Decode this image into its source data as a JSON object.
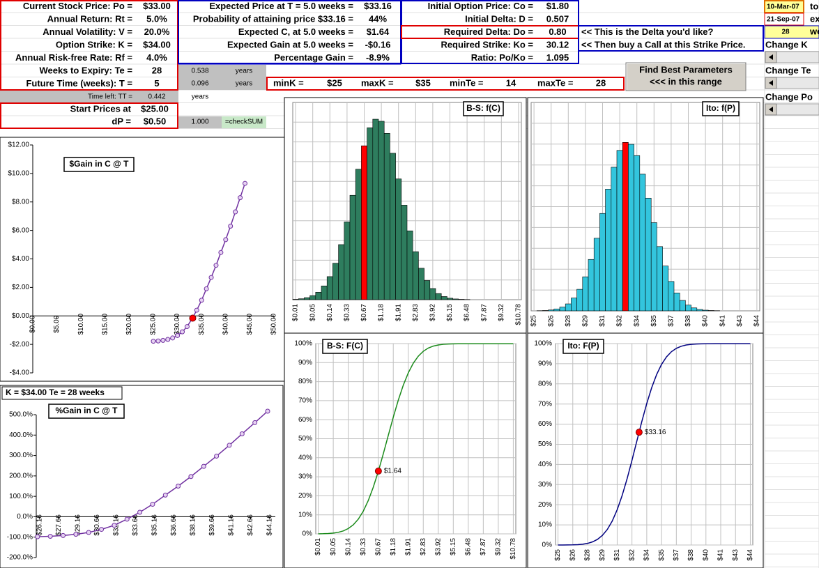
{
  "inputs": [
    {
      "label": "Current Stock Price: Po =",
      "value": "$33.00"
    },
    {
      "label": "Annual Return: Rt =",
      "value": "5.0%"
    },
    {
      "label": "Annual Volatility: V =",
      "value": "20.0%"
    },
    {
      "label": "Option Strike: K =",
      "value": "$34.00"
    },
    {
      "label": "Annual Risk-free Rate: Rf =",
      "value": "4.0%"
    },
    {
      "label": "Weeks to Expiry: Te =",
      "value": "28"
    },
    {
      "label": "Future Time (weeks): T =",
      "value": "5"
    }
  ],
  "years": {
    "te": "0.538",
    "t": "0.096",
    "unit": "years"
  },
  "time_left": {
    "label": "Time left: TT =",
    "value": "0.442"
  },
  "start": {
    "label": "Start Prices at",
    "value": "$25.00"
  },
  "dp": {
    "label": "dP =",
    "value": "$0.50"
  },
  "checksum": {
    "value": "1.000",
    "note": "=checkSUM"
  },
  "expected": [
    {
      "label": "Expected Price at T = 5.0 weeks =",
      "value": "$33.16"
    },
    {
      "label": "Probability of attaining price $33.16 =",
      "value": "44%"
    },
    {
      "label": "Expected C, at 5.0 weeks =",
      "value": "$1.64"
    },
    {
      "label": "Expected Gain at 5.0 weeks =",
      "value": "-$0.16"
    },
    {
      "label": "Percentage Gain =",
      "value": "-8.9%"
    }
  ],
  "option": [
    {
      "label": "Initial Option Price: Co =",
      "value": "$1.80"
    },
    {
      "label": "Initial Delta: D =",
      "value": "0.507"
    },
    {
      "label": "Required Delta: Do =",
      "value": "0.80"
    },
    {
      "label": "Required Strike: Ko =",
      "value": "30.12"
    },
    {
      "label": "Ratio: Po/Ko =",
      "value": "1.095"
    }
  ],
  "notes": [
    "<< This is the Delta you'd like?",
    "<< Then buy a Call at this Strike Price."
  ],
  "range": [
    {
      "label": "minK =",
      "value": "$25"
    },
    {
      "label": "maxK =",
      "value": "$35"
    },
    {
      "label": "minTe =",
      "value": "14"
    },
    {
      "label": "maxTe =",
      "value": "28"
    }
  ],
  "button": [
    "Find Best Parameters",
    "<<< in this range"
  ],
  "side": {
    "start_date": "10-Mar-07",
    "to": "to",
    "end_date": "21-Sep-07",
    "ex": "ex",
    "weeks": "28",
    "we": "we",
    "controls": [
      "Change K",
      "Change Te",
      "Change Po"
    ]
  },
  "chart_caption": "K = $34.00  Te = 28 weeks",
  "chart_data": [
    {
      "type": "line",
      "title": "$Gain in C @ T",
      "color": "#7030a0",
      "x": [
        25,
        26,
        27,
        28,
        29,
        30,
        31,
        32,
        33,
        34,
        35,
        36,
        37,
        38,
        39,
        40,
        41,
        42,
        43,
        44
      ],
      "values": [
        -1.78,
        -1.76,
        -1.72,
        -1.65,
        -1.55,
        -1.38,
        -1.12,
        -0.75,
        -0.22,
        0.4,
        1.1,
        1.9,
        2.7,
        3.55,
        4.45,
        5.35,
        6.3,
        7.3,
        8.3,
        9.3
      ],
      "xlim": [
        0,
        50
      ],
      "ylim": [
        -4,
        12
      ],
      "xticks": [
        {
          "value": 0,
          "label": "$0.00"
        },
        {
          "value": 5,
          "label": "$5.00"
        },
        {
          "value": 10,
          "label": "$10.00"
        },
        {
          "value": 15,
          "label": "$15.00"
        },
        {
          "value": 20,
          "label": "$20.00"
        },
        {
          "value": 25,
          "label": "$25.00"
        },
        {
          "value": 30,
          "label": "$30.00"
        },
        {
          "value": 35,
          "label": "$35.00"
        },
        {
          "value": 40,
          "label": "$40.00"
        },
        {
          "value": 45,
          "label": "$45.00"
        },
        {
          "value": 50,
          "label": "$50.00"
        }
      ],
      "yticks": [
        {
          "value": -4,
          "label": "-$4.00"
        },
        {
          "value": -2,
          "label": "-$2.00"
        },
        {
          "value": 0,
          "label": "$0.00"
        },
        {
          "value": 2,
          "label": "$2.00"
        },
        {
          "value": 4,
          "label": "$4.00"
        },
        {
          "value": 6,
          "label": "$6.00"
        },
        {
          "value": 8,
          "label": "$8.00"
        },
        {
          "value": 10,
          "label": "$10.00"
        },
        {
          "value": 12,
          "label": "$12.00"
        }
      ],
      "marker": {
        "x": 33.16,
        "y": -0.16,
        "color": "#ff0000"
      }
    },
    {
      "type": "line",
      "title": "%Gain in C @ T",
      "color": "#7030a0",
      "x": [
        26,
        27,
        28,
        29,
        30,
        31,
        32,
        33,
        34,
        35,
        36,
        37,
        38,
        39,
        40,
        41,
        42,
        43,
        44
      ],
      "values": [
        -98,
        -96,
        -92,
        -86,
        -77,
        -62,
        -42,
        -12,
        22,
        61,
        106,
        150,
        197,
        247,
        297,
        350,
        406,
        461,
        517
      ],
      "xlim": [
        25.9,
        44.6
      ],
      "ylim": [
        -200,
        500
      ],
      "xticks": [
        {
          "value": 26.16,
          "label": "$26.16"
        },
        {
          "value": 27.66,
          "label": "$27.66"
        },
        {
          "value": 29.16,
          "label": "$29.16"
        },
        {
          "value": 30.66,
          "label": "$30.66"
        },
        {
          "value": 32.16,
          "label": "$32.16"
        },
        {
          "value": 33.66,
          "label": "$33.66"
        },
        {
          "value": 35.16,
          "label": "$35.16"
        },
        {
          "value": 36.66,
          "label": "$36.66"
        },
        {
          "value": 38.16,
          "label": "$38.16"
        },
        {
          "value": 39.66,
          "label": "$39.66"
        },
        {
          "value": 41.16,
          "label": "$41.16"
        },
        {
          "value": 42.66,
          "label": "$42.66"
        },
        {
          "value": 44.16,
          "label": "$44.16"
        }
      ],
      "yticks": [
        {
          "value": -200,
          "label": "-200.0%"
        },
        {
          "value": -100,
          "label": "-100.0%"
        },
        {
          "value": 0,
          "label": "0.0%"
        },
        {
          "value": 100,
          "label": "100.0%"
        },
        {
          "value": 200,
          "label": "200.0%"
        },
        {
          "value": 300,
          "label": "300.0%"
        },
        {
          "value": 400,
          "label": "400.0%"
        },
        {
          "value": 500,
          "label": "500.0%"
        }
      ]
    },
    {
      "type": "bar",
      "title": "B-S: f(C)",
      "color": "#2e7d5e",
      "ylim": [
        0,
        10.6
      ],
      "categories": [
        "$0.01",
        null,
        null,
        "$0.05",
        null,
        null,
        "$0.14",
        null,
        null,
        "$0.33",
        null,
        null,
        "$0.67",
        null,
        null,
        "$1.18",
        null,
        null,
        "$1.91",
        null,
        null,
        "$2.83",
        null,
        null,
        "$3.92",
        null,
        null,
        "$5.15",
        null,
        null,
        "$6.48",
        null,
        null,
        "$7.87",
        null,
        null,
        "$9.32",
        null,
        null,
        "$10.78"
      ],
      "values": [
        0.02,
        0.05,
        0.11,
        0.22,
        0.4,
        0.74,
        1.24,
        1.96,
        2.96,
        4.18,
        5.61,
        7.01,
        8.27,
        9.24,
        9.7,
        9.59,
        8.94,
        7.87,
        6.49,
        5.08,
        3.7,
        2.58,
        1.69,
        1.03,
        0.6,
        0.33,
        0.17,
        0.08,
        0.04,
        0.02,
        0.01,
        0,
        0,
        0,
        0,
        0,
        0,
        0,
        0,
        0
      ],
      "highlight": {
        "index": 12,
        "color": "#ff0000"
      }
    },
    {
      "type": "bar",
      "title": "Ito: f(P)",
      "color": "#33c5dd",
      "ylim": [
        0,
        12
      ],
      "categories": [
        "$25",
        null,
        null,
        "$26",
        null,
        null,
        "$28",
        null,
        null,
        "$29",
        null,
        null,
        "$31",
        null,
        null,
        "$32",
        null,
        null,
        "$34",
        null,
        null,
        "$35",
        null,
        null,
        "$37",
        null,
        null,
        "$38",
        null,
        null,
        "$40",
        null,
        null,
        "$41",
        null,
        null,
        "$43",
        null,
        null,
        "$44"
      ],
      "values": [
        0,
        0.01,
        0.02,
        0.05,
        0.11,
        0.22,
        0.4,
        0.74,
        1.24,
        1.96,
        2.96,
        4.18,
        5.61,
        7.01,
        8.27,
        9.24,
        9.7,
        9.59,
        8.94,
        7.87,
        6.49,
        5.08,
        3.7,
        2.58,
        1.69,
        1.03,
        0.6,
        0.33,
        0.17,
        0.08,
        0.04,
        0.02,
        0.01,
        0,
        0,
        0,
        0,
        0,
        0,
        0
      ],
      "highlight": {
        "index": 16,
        "color": "#ff0000"
      }
    },
    {
      "type": "line",
      "title": "B-S: F(C)",
      "color": "#1a8a1a",
      "ylim": [
        0,
        100
      ],
      "categories": [
        "$0.01",
        null,
        null,
        "$0.05",
        null,
        null,
        "$0.14",
        null,
        null,
        "$0.33",
        null,
        null,
        "$0.67",
        null,
        null,
        "$1.18",
        null,
        null,
        "$1.91",
        null,
        null,
        "$2.83",
        null,
        null,
        "$3.92",
        null,
        null,
        "$5.15",
        null,
        null,
        "$6.48",
        null,
        null,
        "$7.87",
        null,
        null,
        "$9.32",
        null,
        null,
        "$10.78"
      ],
      "values": [
        0.02,
        0.07,
        0.18,
        0.4,
        0.8,
        1.54,
        2.78,
        4.74,
        7.7,
        11.88,
        17.49,
        24.5,
        32.77,
        42.01,
        51.71,
        61.3,
        70.24,
        78.11,
        84.6,
        89.68,
        93.38,
        95.96,
        97.65,
        98.68,
        99.28,
        99.61,
        99.78,
        99.86,
        99.9,
        99.92,
        99.93,
        99.93,
        99.93,
        99.93,
        99.93,
        99.93,
        99.93,
        99.93,
        99.93,
        99.93
      ],
      "yticks": [
        {
          "value": 0,
          "label": "0%"
        },
        {
          "value": 10,
          "label": "10%"
        },
        {
          "value": 20,
          "label": "20%"
        },
        {
          "value": 30,
          "label": "30%"
        },
        {
          "value": 40,
          "label": "40%"
        },
        {
          "value": 50,
          "label": "50%"
        },
        {
          "value": 60,
          "label": "60%"
        },
        {
          "value": 70,
          "label": "70%"
        },
        {
          "value": 80,
          "label": "80%"
        },
        {
          "value": 90,
          "label": "90%"
        },
        {
          "value": 100,
          "label": "100%"
        }
      ],
      "grid": true,
      "marker": {
        "value": 33,
        "label": "$1.64",
        "color": "#ff0000"
      }
    },
    {
      "type": "line",
      "title": "Ito: F(P)",
      "color": "#000080",
      "ylim": [
        0,
        100
      ],
      "categories": [
        "$25",
        null,
        null,
        "$26",
        null,
        null,
        "$28",
        null,
        null,
        "$29",
        null,
        null,
        "$31",
        null,
        null,
        "$32",
        null,
        null,
        "$34",
        null,
        null,
        "$35",
        null,
        null,
        "$37",
        null,
        null,
        "$38",
        null,
        null,
        "$40",
        null,
        null,
        "$41",
        null,
        null,
        "$43",
        null,
        null,
        "$44"
      ],
      "values": [
        0,
        0.01,
        0.03,
        0.08,
        0.19,
        0.41,
        0.81,
        1.55,
        2.79,
        4.75,
        7.71,
        11.89,
        17.5,
        24.51,
        32.78,
        42.02,
        51.72,
        61.31,
        70.25,
        78.12,
        84.61,
        89.69,
        93.39,
        95.97,
        97.66,
        98.69,
        99.29,
        99.62,
        99.79,
        99.87,
        99.91,
        99.93,
        99.94,
        99.94,
        99.94,
        99.94,
        99.94,
        99.94,
        99.94,
        99.94
      ],
      "yticks": [
        {
          "value": 0,
          "label": "0%"
        },
        {
          "value": 10,
          "label": "10%"
        },
        {
          "value": 20,
          "label": "20%"
        },
        {
          "value": 30,
          "label": "30%"
        },
        {
          "value": 40,
          "label": "40%"
        },
        {
          "value": 50,
          "label": "50%"
        },
        {
          "value": 60,
          "label": "60%"
        },
        {
          "value": 70,
          "label": "70%"
        },
        {
          "value": 80,
          "label": "80%"
        },
        {
          "value": 90,
          "label": "90%"
        },
        {
          "value": 100,
          "label": "100%"
        }
      ],
      "grid": true,
      "marker": {
        "value": 56,
        "label": "$33.16",
        "color": "#ff0000"
      }
    }
  ]
}
